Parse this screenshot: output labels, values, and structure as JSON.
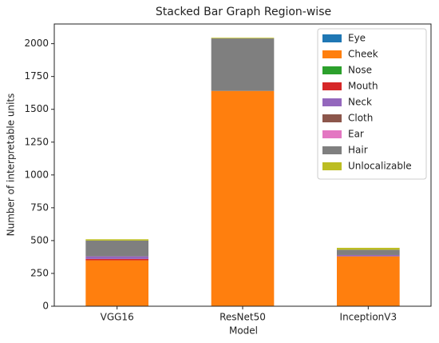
{
  "chart_data": {
    "type": "stacked_bar",
    "title": "Stacked Bar Graph Region-wise",
    "xlabel": "Model",
    "ylabel": "Number of interpretable units",
    "categories": [
      "VGG16",
      "ResNet50",
      "InceptionV3"
    ],
    "series": [
      {
        "name": "Eye",
        "color": "#1f77b4",
        "values": [
          0,
          0,
          0
        ]
      },
      {
        "name": "Cheek",
        "color": "#ff7f0e",
        "values": [
          350,
          1640,
          380
        ]
      },
      {
        "name": "Nose",
        "color": "#2ca02c",
        "values": [
          0,
          0,
          0
        ]
      },
      {
        "name": "Mouth",
        "color": "#d62728",
        "values": [
          10,
          0,
          0
        ]
      },
      {
        "name": "Neck",
        "color": "#9467bd",
        "values": [
          20,
          0,
          10
        ]
      },
      {
        "name": "Cloth",
        "color": "#8c564b",
        "values": [
          0,
          0,
          0
        ]
      },
      {
        "name": "Ear",
        "color": "#e377c2",
        "values": [
          0,
          0,
          0
        ]
      },
      {
        "name": "Hair",
        "color": "#7f7f7f",
        "values": [
          120,
          400,
          40
        ]
      },
      {
        "name": "Unlocalizable",
        "color": "#bcbd22",
        "values": [
          10,
          5,
          15
        ]
      }
    ],
    "ylim": [
      0,
      2150
    ],
    "yticks": [
      0,
      250,
      500,
      750,
      1000,
      1250,
      1500,
      1750,
      2000
    ],
    "legend": "upper right"
  }
}
